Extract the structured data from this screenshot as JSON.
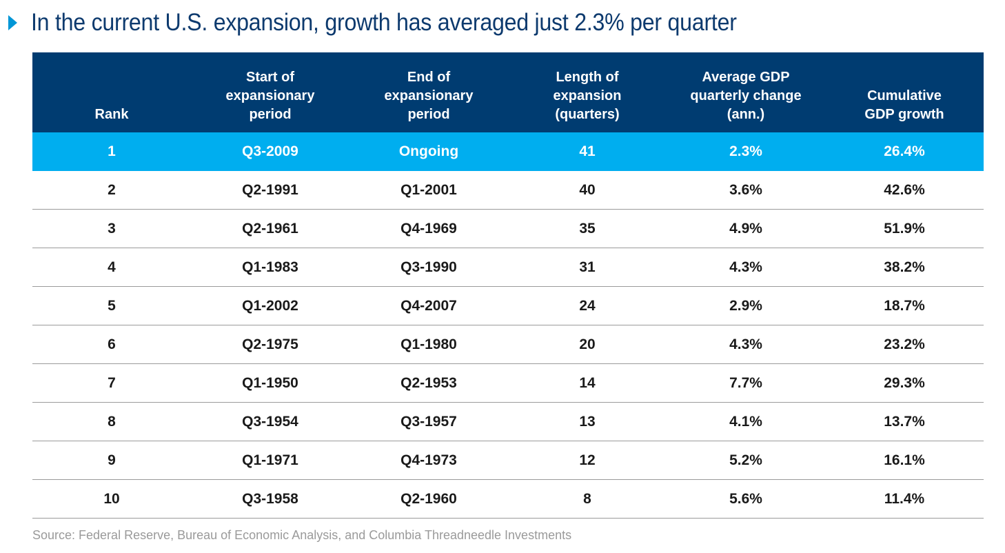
{
  "title": "In the current U.S. expansion, growth has averaged just 2.3% per quarter",
  "colors": {
    "header_bg": "#003c71",
    "highlight_row": "#00aeef",
    "title_text": "#0d3a6e",
    "marker": "#0096d6"
  },
  "source": "Source: Federal Reserve, Bureau of Economic Analysis, and Columbia Threadneedle Investments",
  "chart_data": {
    "type": "table",
    "title": "In the current U.S. expansion, growth has averaged just 2.3% per quarter",
    "columns": [
      "Rank",
      "Start of expansionary period",
      "End of expansionary period",
      "Length of expansion (quarters)",
      "Average GDP quarterly change (ann.)",
      "Cumulative GDP growth"
    ],
    "highlighted_row": 0,
    "rows": [
      [
        "1",
        "Q3-2009",
        "Ongoing",
        "41",
        "2.3%",
        "26.4%"
      ],
      [
        "2",
        "Q2-1991",
        "Q1-2001",
        "40",
        "3.6%",
        "42.6%"
      ],
      [
        "3",
        "Q2-1961",
        "Q4-1969",
        "35",
        "4.9%",
        "51.9%"
      ],
      [
        "4",
        "Q1-1983",
        "Q3-1990",
        "31",
        "4.3%",
        "38.2%"
      ],
      [
        "5",
        "Q1-2002",
        "Q4-2007",
        "24",
        "2.9%",
        "18.7%"
      ],
      [
        "6",
        "Q2-1975",
        "Q1-1980",
        "20",
        "4.3%",
        "23.2%"
      ],
      [
        "7",
        "Q1-1950",
        "Q2-1953",
        "14",
        "7.7%",
        "29.3%"
      ],
      [
        "8",
        "Q3-1954",
        "Q3-1957",
        "13",
        "4.1%",
        "13.7%"
      ],
      [
        "9",
        "Q1-1971",
        "Q4-1973",
        "12",
        "5.2%",
        "16.1%"
      ],
      [
        "10",
        "Q3-1958",
        "Q2-1960",
        "8",
        "5.6%",
        "11.4%"
      ]
    ]
  }
}
